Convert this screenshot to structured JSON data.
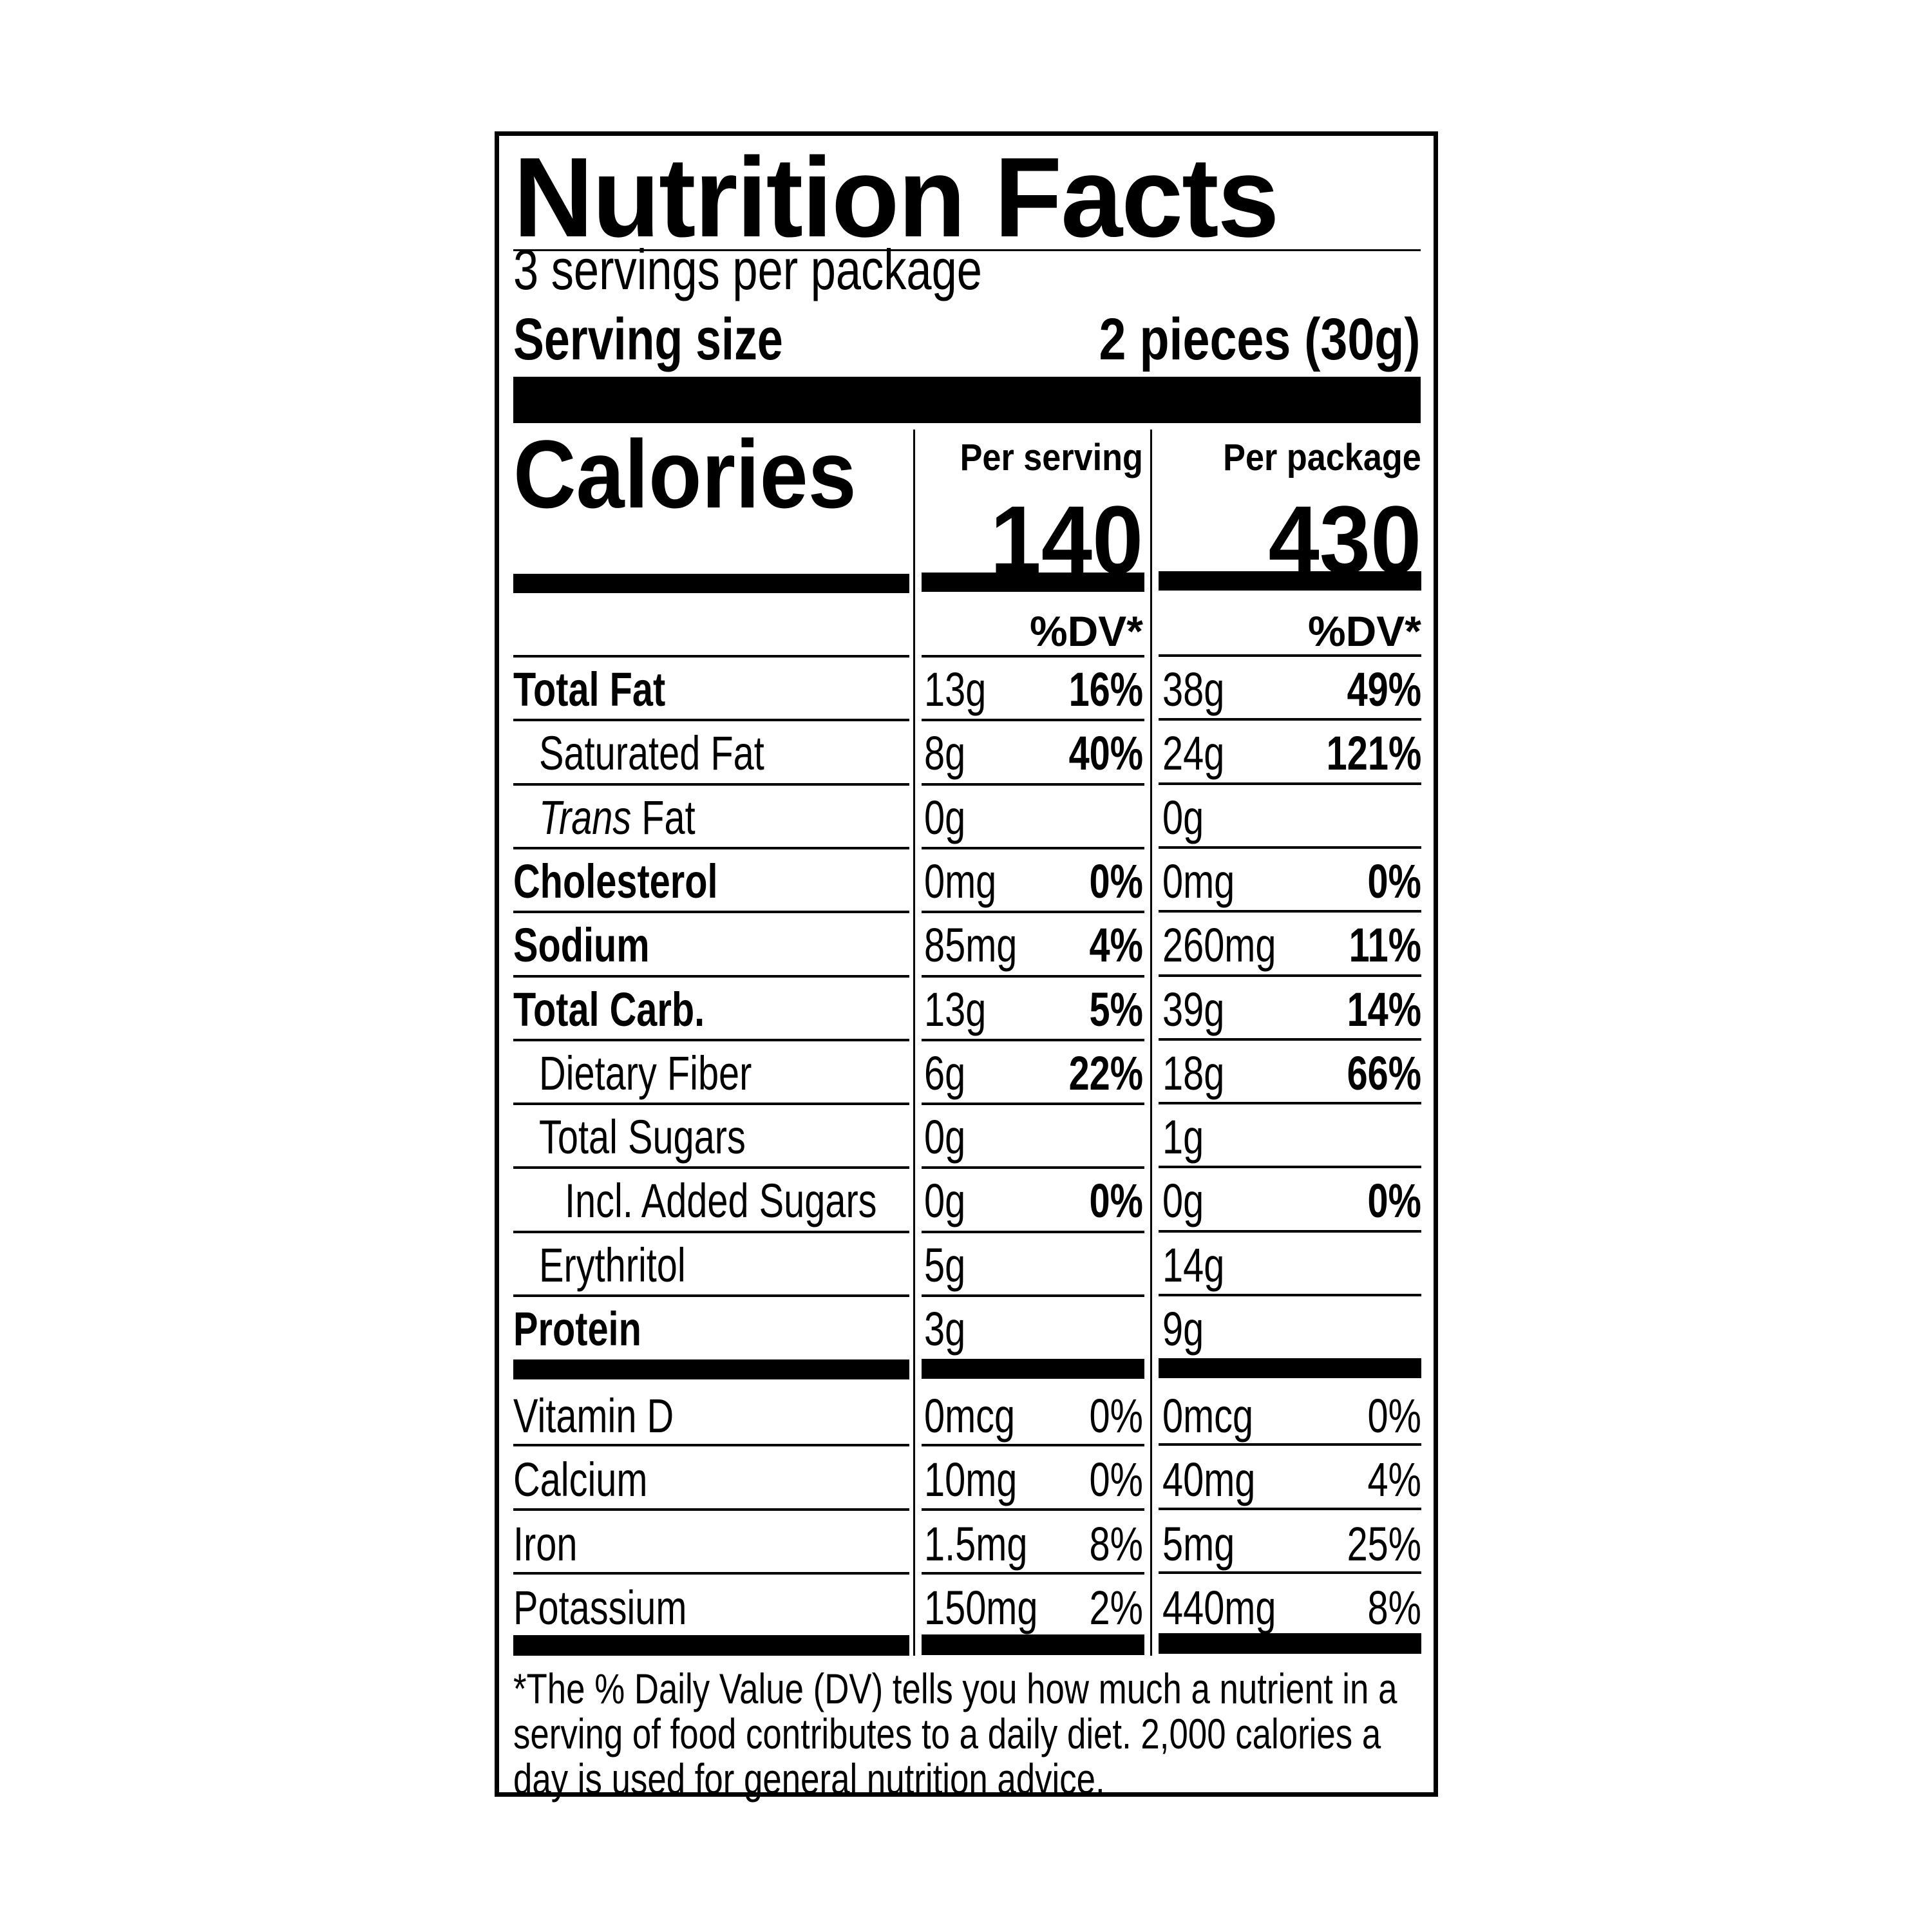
{
  "label": {
    "title": "Nutrition Facts",
    "servings_per_container": "3 servings per package",
    "serving_size_label": "Serving size",
    "serving_size_value": "2 pieces (30g)",
    "column_headers": {
      "per_serving": "Per serving",
      "per_package": "Per package"
    },
    "calories": {
      "label": "Calories",
      "per_serving": "140",
      "per_package": "430"
    },
    "dv_header": {
      "per_serving": "%DV*",
      "per_package": "%DV*"
    },
    "nutrients": [
      {
        "name": "Total Fat",
        "style": "bold",
        "indent": 0,
        "serving_amount": "13g",
        "serving_dv": "16%",
        "package_amount": "38g",
        "package_dv": "49%"
      },
      {
        "name": "Saturated Fat",
        "style": "normal",
        "indent": 1,
        "serving_amount": "8g",
        "serving_dv": "40%",
        "package_amount": "24g",
        "package_dv": "121%"
      },
      {
        "name_italic": "Trans",
        "name": " Fat",
        "style": "normal",
        "indent": 1,
        "serving_amount": "0g",
        "serving_dv": "",
        "package_amount": "0g",
        "package_dv": ""
      },
      {
        "name": "Cholesterol",
        "style": "bold",
        "indent": 0,
        "serving_amount": "0mg",
        "serving_dv": "0%",
        "package_amount": "0mg",
        "package_dv": "0%"
      },
      {
        "name": "Sodium",
        "style": "bold",
        "indent": 0,
        "serving_amount": "85mg",
        "serving_dv": "4%",
        "package_amount": "260mg",
        "package_dv": "11%"
      },
      {
        "name": "Total Carb.",
        "style": "bold",
        "indent": 0,
        "serving_amount": "13g",
        "serving_dv": "5%",
        "package_amount": "39g",
        "package_dv": "14%"
      },
      {
        "name": "Dietary Fiber",
        "style": "normal",
        "indent": 1,
        "serving_amount": "6g",
        "serving_dv": "22%",
        "package_amount": "18g",
        "package_dv": "66%"
      },
      {
        "name": "Total Sugars",
        "style": "normal",
        "indent": 1,
        "serving_amount": "0g",
        "serving_dv": "",
        "package_amount": "1g",
        "package_dv": ""
      },
      {
        "name": "Incl. Added Sugars",
        "style": "normal",
        "indent": 2,
        "serving_amount": "0g",
        "serving_dv": "0%",
        "package_amount": "0g",
        "package_dv": "0%"
      },
      {
        "name": "Erythritol",
        "style": "normal",
        "indent": 1,
        "serving_amount": "5g",
        "serving_dv": "",
        "package_amount": "14g",
        "package_dv": ""
      },
      {
        "name": "Protein",
        "style": "bold",
        "indent": 0,
        "serving_amount": "3g",
        "serving_dv": "",
        "package_amount": "9g",
        "package_dv": ""
      }
    ],
    "vitamins": [
      {
        "name": "Vitamin D",
        "serving_amount": "0mcg",
        "serving_dv": "0%",
        "package_amount": "0mcg",
        "package_dv": "0%"
      },
      {
        "name": "Calcium",
        "serving_amount": "10mg",
        "serving_dv": "0%",
        "package_amount": "40mg",
        "package_dv": "4%"
      },
      {
        "name": "Iron",
        "serving_amount": "1.5mg",
        "serving_dv": "8%",
        "package_amount": "5mg",
        "package_dv": "25%"
      },
      {
        "name": "Potassium",
        "serving_amount": "150mg",
        "serving_dv": "2%",
        "package_amount": "440mg",
        "package_dv": "8%"
      }
    ],
    "footnote_lines": [
      "*The % Daily Value (DV) tells you how much a nutrient in a",
      "serving of food contributes to a daily diet. 2,000 calories a",
      "day is used for general nutrition advice."
    ]
  }
}
